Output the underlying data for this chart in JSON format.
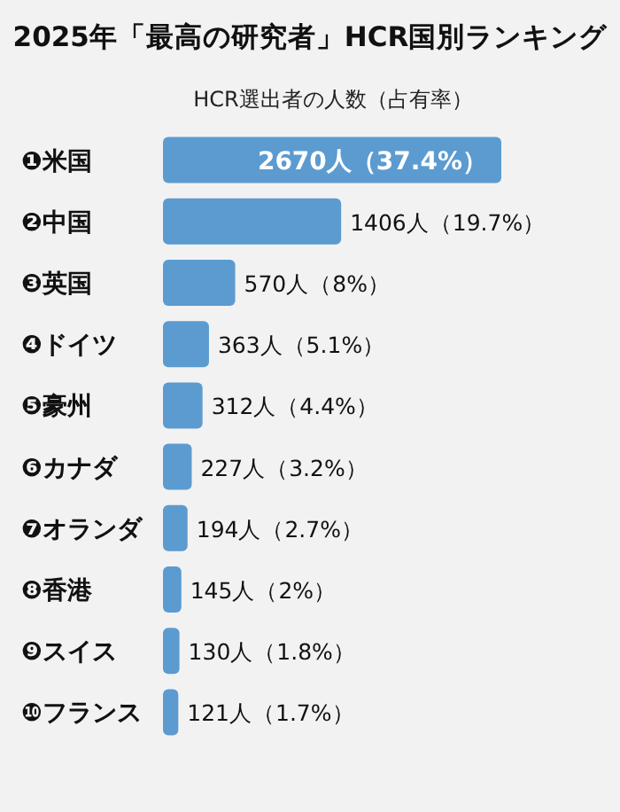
{
  "chart_data": {
    "type": "bar",
    "orientation": "horizontal",
    "title": "2025年「最高の研究者」HCR国別ランキング",
    "subtitle": "HCR選出者の人数（占有率）",
    "categories": [
      "❶米国",
      "❷中国",
      "❸英国",
      "❹ドイツ",
      "❺豪州",
      "❻カナダ",
      "❼オランダ",
      "❽香港",
      "❾スイス",
      "❿フランス"
    ],
    "values": [
      2670,
      1406,
      570,
      363,
      312,
      227,
      194,
      145,
      130,
      121
    ],
    "value_labels": [
      "2670人（37.4%）",
      "1406人（19.7%）",
      "570人（8%）",
      "363人（5.1%）",
      "312人（4.4%）",
      "227人（3.2%）",
      "194人（2.7%）",
      "145人（2%）",
      "130人（1.8%）",
      "121人（1.7%）"
    ],
    "color": "#5b9bd0"
  }
}
